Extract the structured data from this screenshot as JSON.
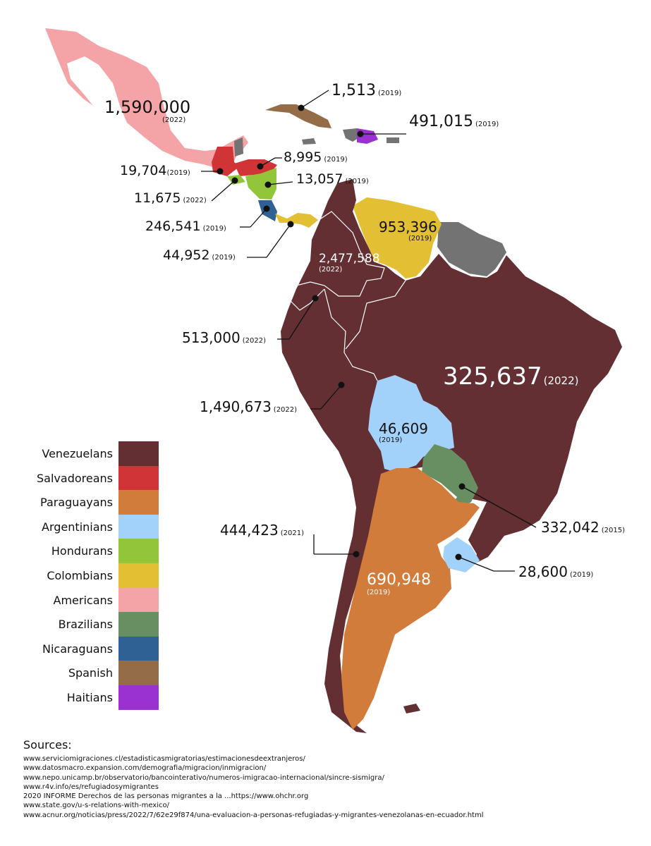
{
  "legend": {
    "items": [
      {
        "label": "Venezuelans",
        "color": "#632f32"
      },
      {
        "label": "Salvadoreans",
        "color": "#d03437"
      },
      {
        "label": "Paraguayans",
        "color": "#d27c3b"
      },
      {
        "label": "Argentinians",
        "color": "#a2d2fa"
      },
      {
        "label": "Hondurans",
        "color": "#92c53a"
      },
      {
        "label": "Colombians",
        "color": "#e2bf33"
      },
      {
        "label": "Americans",
        "color": "#f4a4a7"
      },
      {
        "label": "Brazilians",
        "color": "#688f62"
      },
      {
        "label": "Nicaraguans",
        "color": "#2f6194"
      },
      {
        "label": "Spanish",
        "color": "#946c48"
      },
      {
        "label": "Haitians",
        "color": "#9a32d2"
      }
    ],
    "no_data_color": "#737373"
  },
  "regions": {
    "mexico": {
      "number": "1,590,000",
      "year": "(2022)",
      "group": "Americans"
    },
    "cuba": {
      "number": "1,513",
      "year": "(2019)",
      "group": "Spanish"
    },
    "dominican_republic": {
      "number": "491,015",
      "year": "(2019)",
      "group": "Haitians"
    },
    "belize_honduras": {
      "number": "8,995",
      "year": "(2019)",
      "group": "Salvadoreans"
    },
    "guatemala": {
      "number": "19,704",
      "year": "(2019)",
      "group": "Salvadoreans"
    },
    "nicaragua": {
      "number": "13,057",
      "year": "(2019)",
      "group": "Hondurans"
    },
    "el_salvador": {
      "number": "11,675",
      "year": "(2022)",
      "group": "Hondurans"
    },
    "costa_rica": {
      "number": "246,541",
      "year": "(2019)",
      "group": "Nicaraguans"
    },
    "panama": {
      "number": "44,952",
      "year": "(2019)",
      "group": "Colombians"
    },
    "venezuela": {
      "number": "953,396",
      "year": "(2019)",
      "group": "Colombians"
    },
    "colombia": {
      "number": "2,477,588",
      "year": "(2022)",
      "group": "Venezuelans"
    },
    "ecuador": {
      "number": "513,000",
      "year": "(2022)",
      "group": "Venezuelans"
    },
    "brazil": {
      "number": "325,637",
      "year": "(2022)",
      "group": "Venezuelans"
    },
    "peru": {
      "number": "1,490,673",
      "year": "(2022)",
      "group": "Venezuelans"
    },
    "bolivia": {
      "number": "46,609",
      "year": "(2019)",
      "group": "Argentinians"
    },
    "paraguay": {
      "number": "332,042",
      "year": "(2015)",
      "group": "Brazilians"
    },
    "chile": {
      "number": "444,423",
      "year": "(2021)",
      "group": "Venezuelans"
    },
    "uruguay": {
      "number": "28,600",
      "year": "(2019)",
      "group": "Argentinians"
    },
    "argentina": {
      "number": "690,948",
      "year": "(2019)",
      "group": "Paraguayans"
    }
  },
  "sources": {
    "title": "Sources:",
    "lines": [
      "www.serviciomigraciones.cl/estadisticasmigratorias/estimacionesdeextranjeros/",
      "www.datosmacro.expansion.com/demografia/migracion/inmigracion/",
      "www.nepo.unicamp.br/observatorio/bancointerativo/numeros-imigracao-internacional/sincre-sismigra/",
      "www.r4v.info/es/refugiadosymigrantes",
      "2020 INFORME Derechos de las personas migrantes a la ...https://www.ohchr.org",
      "www.state.gov/u-s-relations-with-mexico/",
      "www.acnur.org/noticias/press/2022/7/62e29f874/una-evaluacion-a-personas-refugiadas-y-migrantes-venezolanas-en-ecuador.html"
    ]
  }
}
